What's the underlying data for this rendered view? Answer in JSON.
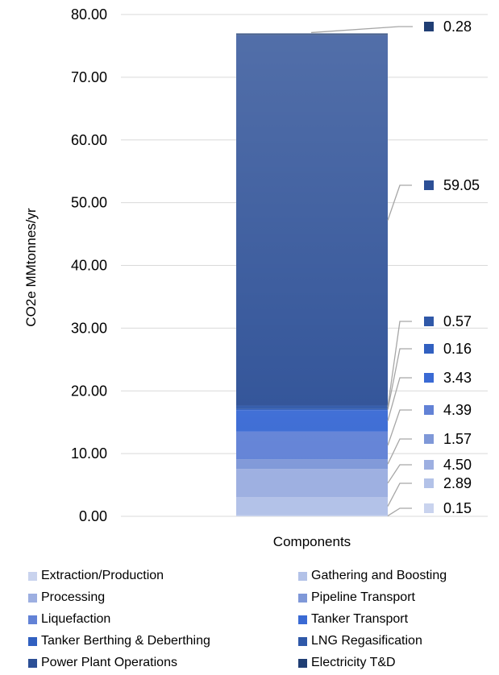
{
  "chart_data": {
    "type": "bar",
    "stacked": true,
    "categories": [
      "Components"
    ],
    "xlabel": "Components",
    "ylabel": "CO2e MMtonnes/yr",
    "ylim": [
      0,
      80
    ],
    "yticks": [
      "0.00",
      "10.00",
      "20.00",
      "30.00",
      "40.00",
      "50.00",
      "60.00",
      "70.00",
      "80.00"
    ],
    "grid": true,
    "legend_position": "bottom",
    "series": [
      {
        "name": "Extraction/Production",
        "values": [
          0.15
        ],
        "label": "0.15",
        "color": "#c9d3ee"
      },
      {
        "name": "Gathering and Boosting",
        "values": [
          2.89
        ],
        "label": "2.89",
        "color": "#b3c2e8"
      },
      {
        "name": "Processing",
        "values": [
          4.5
        ],
        "label": "4.50",
        "color": "#9dafe1"
      },
      {
        "name": "Pipeline Transport",
        "values": [
          1.57
        ],
        "label": "1.57",
        "color": "#7f98d8"
      },
      {
        "name": "Liquefaction",
        "values": [
          4.39
        ],
        "label": "4.39",
        "color": "#6282d6"
      },
      {
        "name": "Tanker Transport",
        "values": [
          3.43
        ],
        "label": "3.43",
        "color": "#3a6ad4"
      },
      {
        "name": "Tanker Berthing & Deberthing",
        "values": [
          0.16
        ],
        "label": "0.16",
        "color": "#3160c0"
      },
      {
        "name": "LNG Regasification",
        "values": [
          0.57
        ],
        "label": "0.57",
        "color": "#2f58a8"
      },
      {
        "name": "Power Plant Operations",
        "values": [
          59.05
        ],
        "label": "59.05",
        "color": "#2c4f96"
      },
      {
        "name": "Electricity T&D",
        "values": [
          0.28
        ],
        "label": "0.28",
        "color": "#203e74"
      }
    ]
  }
}
